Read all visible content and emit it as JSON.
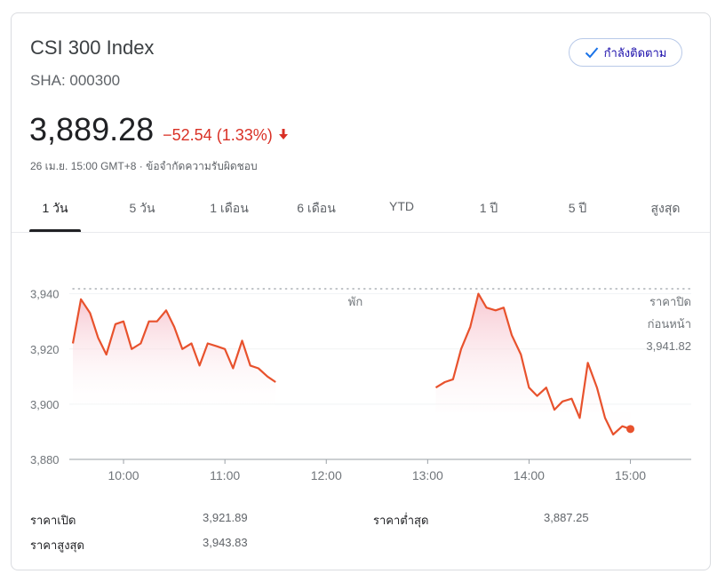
{
  "header": {
    "title": "CSI 300 Index",
    "ticker": "SHA: 000300",
    "follow_label": "กำลังติดตาม"
  },
  "quote": {
    "price": "3,889.28",
    "change": "−52.54 (1.33%)",
    "timestamp": "26 เม.ย. 15:00 GMT+8 · ",
    "disclaimer": "ข้อจำกัดความรับผิดชอบ"
  },
  "colors": {
    "line": "#e8522d",
    "negative": "#d93025",
    "fill_top": "#f7c5cf"
  },
  "tabs": [
    {
      "label": "1 วัน",
      "active": true
    },
    {
      "label": "5 วัน"
    },
    {
      "label": "1 เดือน"
    },
    {
      "label": "6 เดือน"
    },
    {
      "label": "YTD"
    },
    {
      "label": "1 ปี"
    },
    {
      "label": "5 ปี"
    },
    {
      "label": "สูงสุด"
    }
  ],
  "chart_data": {
    "type": "line",
    "ylim": [
      3880,
      3946
    ],
    "yticks": [
      3880,
      3900,
      3920,
      3940
    ],
    "ytick_labels": [
      "3,880",
      "3,900",
      "3,920",
      "3,940"
    ],
    "xticks": [
      "10:00",
      "11:00",
      "12:00",
      "13:00",
      "14:00",
      "15:00"
    ],
    "xlim_hours": [
      9.5,
      15.6
    ],
    "break_label": "พัก",
    "previous_close": 3941.82,
    "previous_close_label": [
      "ราคาปิด",
      "ก่อนหน้า",
      "3,941.82"
    ],
    "series": [
      {
        "x": [
          9.5,
          9.58,
          9.67,
          9.75,
          9.83,
          9.92,
          10.0,
          10.08,
          10.17,
          10.25,
          10.33,
          10.42,
          10.5,
          10.58,
          10.67,
          10.75,
          10.83,
          10.92,
          11.0,
          11.08,
          11.17,
          11.25,
          11.33,
          11.42,
          11.5
        ],
        "y": [
          3922,
          3938,
          3933,
          3924,
          3918,
          3929,
          3930,
          3920,
          3922,
          3930,
          3930,
          3934,
          3928,
          3920,
          3922,
          3914,
          3922,
          3921,
          3920,
          3913,
          3923,
          3914,
          3913,
          3910,
          3908
        ]
      },
      {
        "x": [
          13.08,
          13.17,
          13.25,
          13.33,
          13.42,
          13.5,
          13.58,
          13.67,
          13.75,
          13.83,
          13.92,
          14.0,
          14.08,
          14.17,
          14.25,
          14.33,
          14.42,
          14.5,
          14.58,
          14.67,
          14.75,
          14.83,
          14.92,
          15.0
        ],
        "y": [
          3906,
          3908,
          3909,
          3920,
          3928,
          3940,
          3935,
          3934,
          3935,
          3925,
          3918,
          3906,
          3903,
          3906,
          3898,
          3901,
          3902,
          3895,
          3915,
          3906,
          3895,
          3889,
          3892,
          3891
        ]
      }
    ]
  },
  "stats": [
    {
      "label": "ราคาเปิด",
      "value": "3,921.89"
    },
    {
      "label": "ราคาสูงสุด",
      "value": "3,943.83"
    },
    {
      "label": "ราคาต่ำสุด",
      "value": "3,887.25"
    }
  ]
}
